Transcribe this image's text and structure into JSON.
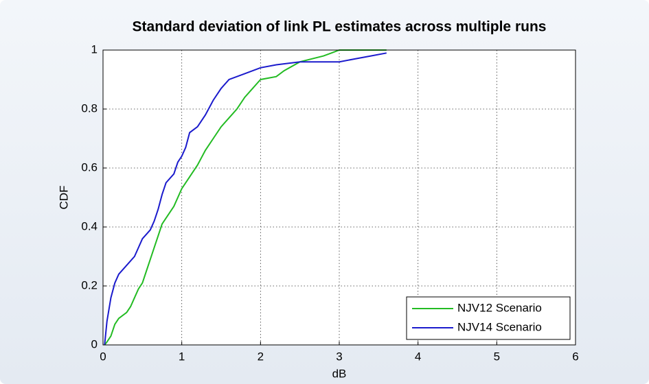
{
  "chart_data": {
    "type": "line",
    "title": "Standard deviation of link PL estimates across multiple runs",
    "x_label": "dB",
    "y_label": "CDF",
    "xlim": [
      0,
      6
    ],
    "ylim": [
      0,
      1
    ],
    "xticks": [
      0,
      1,
      2,
      3,
      4,
      5,
      6
    ],
    "yticks": [
      0,
      0.2,
      0.4,
      0.6,
      0.8,
      1
    ],
    "grid": true,
    "legend": "lower right",
    "series": [
      {
        "name": "NJV12 Scenario",
        "color": "#22bb22",
        "x": [
          0.02,
          0.05,
          0.1,
          0.15,
          0.2,
          0.3,
          0.35,
          0.4,
          0.45,
          0.5,
          0.55,
          0.6,
          0.65,
          0.7,
          0.75,
          0.8,
          0.9,
          1.0,
          1.1,
          1.2,
          1.3,
          1.4,
          1.5,
          1.6,
          1.7,
          1.8,
          1.9,
          2.0,
          2.2,
          2.3,
          2.5,
          2.8,
          2.9,
          3.0,
          3.6
        ],
        "values": [
          0,
          0.01,
          0.03,
          0.07,
          0.09,
          0.11,
          0.13,
          0.16,
          0.19,
          0.21,
          0.25,
          0.29,
          0.33,
          0.37,
          0.41,
          0.43,
          0.47,
          0.53,
          0.57,
          0.61,
          0.66,
          0.7,
          0.74,
          0.77,
          0.8,
          0.84,
          0.87,
          0.9,
          0.91,
          0.93,
          0.96,
          0.98,
          0.99,
          1.0,
          1.0
        ]
      },
      {
        "name": "NJV14 Scenario",
        "color": "#1a1acc",
        "x": [
          0.02,
          0.05,
          0.1,
          0.15,
          0.2,
          0.3,
          0.4,
          0.45,
          0.5,
          0.6,
          0.65,
          0.7,
          0.75,
          0.8,
          0.9,
          0.95,
          1.0,
          1.05,
          1.1,
          1.2,
          1.3,
          1.4,
          1.5,
          1.6,
          1.8,
          2.0,
          2.2,
          2.5,
          3.0,
          3.2,
          3.4,
          3.6
        ],
        "values": [
          0,
          0.08,
          0.16,
          0.21,
          0.24,
          0.27,
          0.3,
          0.33,
          0.36,
          0.39,
          0.42,
          0.46,
          0.51,
          0.55,
          0.58,
          0.62,
          0.64,
          0.67,
          0.72,
          0.74,
          0.78,
          0.83,
          0.87,
          0.9,
          0.92,
          0.94,
          0.95,
          0.96,
          0.96,
          0.97,
          0.98,
          0.99
        ]
      }
    ]
  }
}
